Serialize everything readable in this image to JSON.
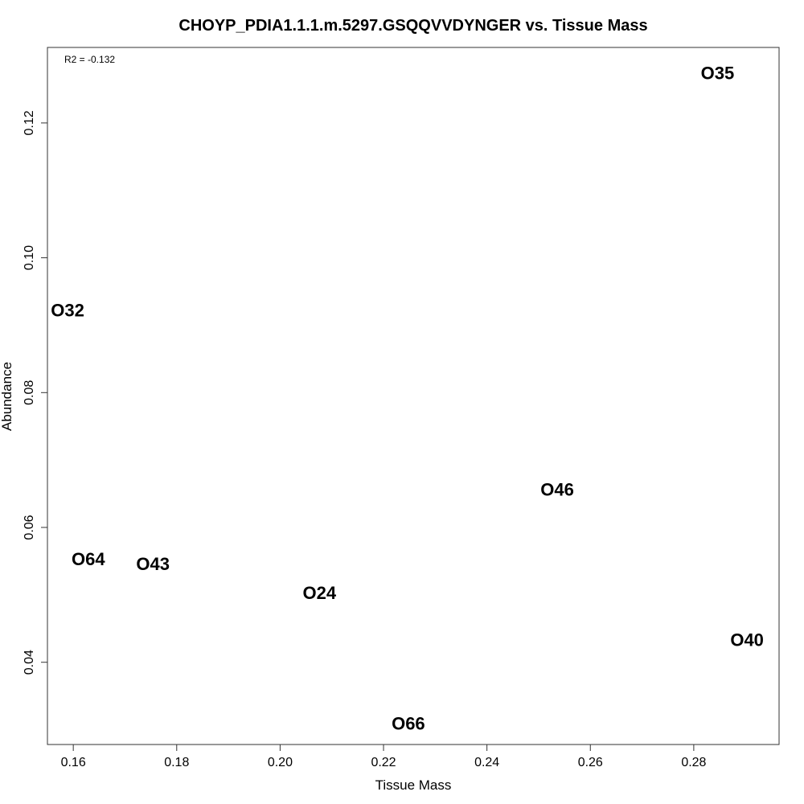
{
  "chart_data": {
    "type": "scatter",
    "title": "CHOYP_PDIA1.1.1.m.5297.GSQQVVDYNGER vs. Tissue Mass",
    "xlabel": "Tissue Mass",
    "ylabel": "Abundance",
    "annotation": "R2 = -0.132",
    "xlim": [
      0.155,
      0.2965
    ],
    "ylim": [
      0.0278,
      0.1312
    ],
    "x_ticks": [
      0.16,
      0.18,
      0.2,
      0.22,
      0.24,
      0.26,
      0.28
    ],
    "x_tick_labels": [
      "0.16",
      "0.18",
      "0.20",
      "0.22",
      "0.24",
      "0.26",
      "0.28"
    ],
    "y_ticks": [
      0.04,
      0.06,
      0.08,
      0.1,
      0.12
    ],
    "y_tick_labels": [
      "0.04",
      "0.06",
      "0.08",
      "0.10",
      "0.12"
    ],
    "grid": false,
    "points": [
      {
        "label": "O35",
        "x": 0.2846,
        "y": 0.1274
      },
      {
        "label": "O32",
        "x": 0.1589,
        "y": 0.0922
      },
      {
        "label": "O46",
        "x": 0.2536,
        "y": 0.0656
      },
      {
        "label": "O64",
        "x": 0.1629,
        "y": 0.0553
      },
      {
        "label": "O43",
        "x": 0.1754,
        "y": 0.0546
      },
      {
        "label": "O24",
        "x": 0.2076,
        "y": 0.0503
      },
      {
        "label": "O40",
        "x": 0.2903,
        "y": 0.0433
      },
      {
        "label": "O66",
        "x": 0.2248,
        "y": 0.0309
      }
    ]
  }
}
